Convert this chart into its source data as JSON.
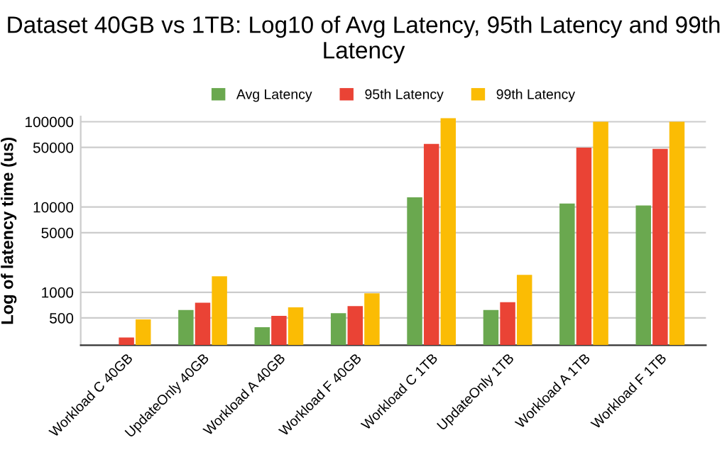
{
  "chart_data": {
    "type": "bar",
    "title": "Dataset 40GB vs 1TB: Log10 of Avg Latency, 95th Latency and 99th Latency",
    "ylabel": "Log of latency time (us)",
    "categories": [
      "Workload C 40GB",
      "UpdateOnly 40GB",
      "Workload A 40GB",
      "Workload F 40GB",
      "Workload C 1TB",
      "UpdateOnly 1TB",
      "Workload A 1TB",
      "Workload F 1TB"
    ],
    "series": [
      {
        "name": "Avg Latency",
        "color": "#6aa84f",
        "values": [
          null,
          620,
          390,
          570,
          13000,
          620,
          11000,
          10400
        ]
      },
      {
        "name": "95th Latency",
        "color": "#ea4335",
        "values": [
          295,
          755,
          530,
          690,
          55000,
          765,
          49700,
          48000
        ]
      },
      {
        "name": "99th Latency",
        "color": "#fbbc04",
        "values": [
          480,
          1540,
          665,
          975,
          110000,
          1600,
          100000,
          100000
        ]
      }
    ],
    "log": "y",
    "ylim": [
      240,
      115000
    ],
    "yticks": [
      500,
      1000,
      5000,
      10000,
      50000,
      100000
    ],
    "grid": "y",
    "legend": "top"
  }
}
